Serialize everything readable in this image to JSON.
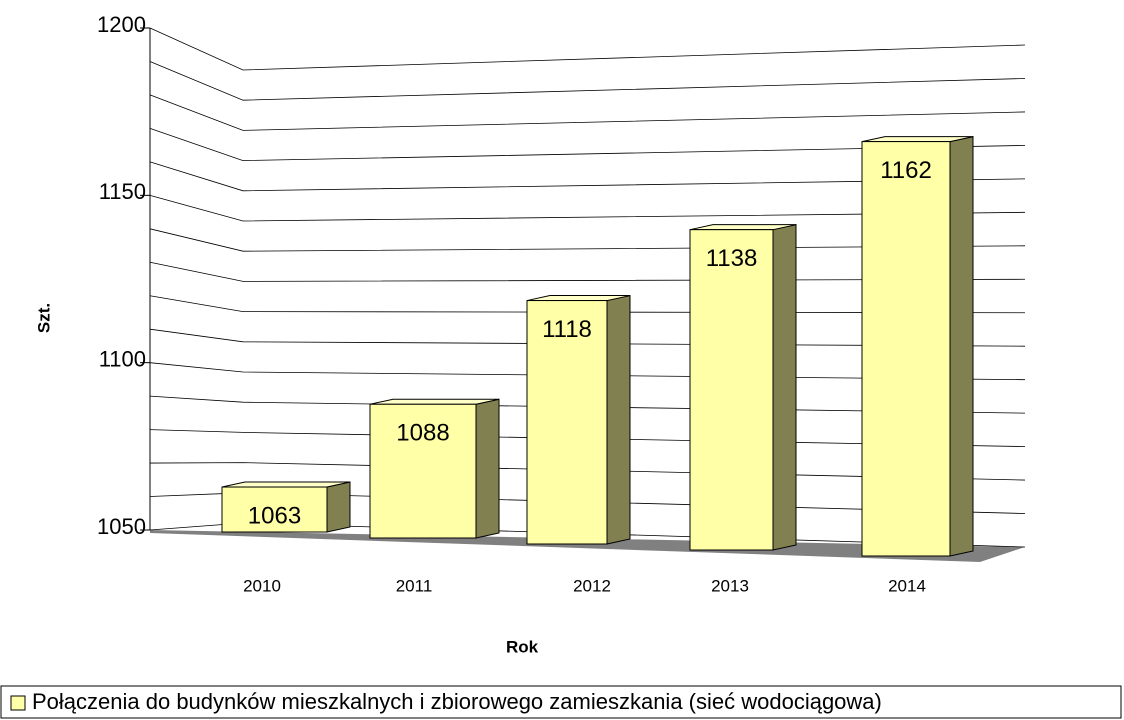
{
  "chart_data": {
    "type": "bar3d",
    "categories": [
      "2010",
      "2011",
      "2012",
      "2013",
      "2014"
    ],
    "series": [
      {
        "name": "Połączenia do budynków mieszkalnych i zbiorowego zamieszkania (sieć wodociągowa)",
        "color": "#ffffa8",
        "values": [
          1063,
          1088,
          1118,
          1138,
          1162
        ]
      }
    ],
    "ylim": [
      1050,
      1200
    ],
    "yticks": [
      1050,
      1100,
      1150,
      1200
    ],
    "minor_yticks": [
      1060,
      1070,
      1080,
      1090,
      1110,
      1120,
      1130,
      1140,
      1160,
      1170,
      1180,
      1190
    ],
    "grid": true,
    "xlabel": "Rok",
    "ylabel": "Szt.",
    "legend": "bottom"
  }
}
